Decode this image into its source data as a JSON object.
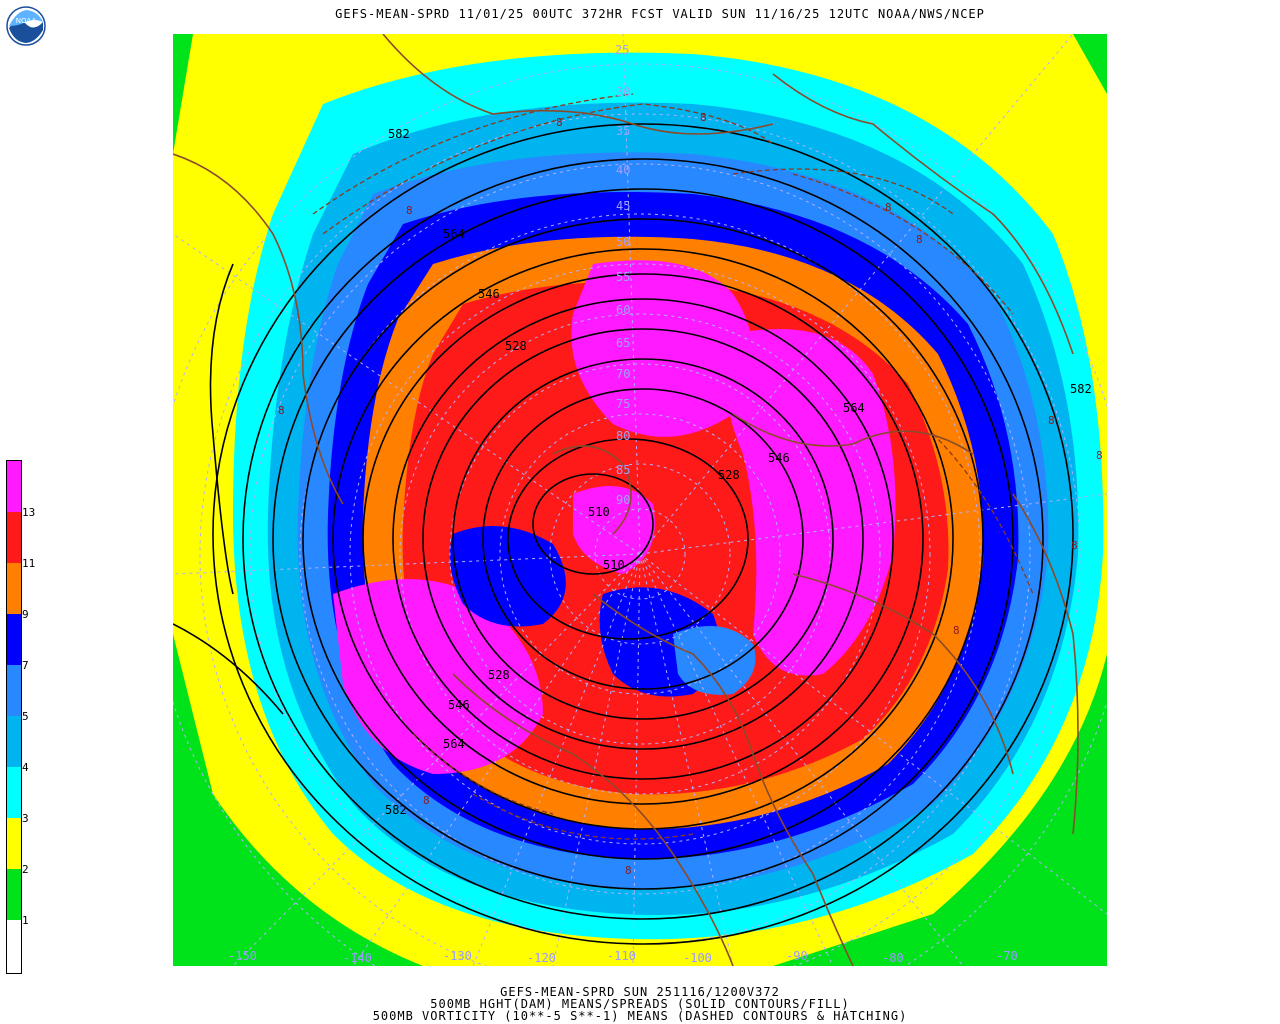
{
  "header": {
    "title": "GEFS-MEAN-SPRD 11/01/25 00UTC 372HR FCST VALID SUN 11/16/25 12UTC NOAA/NWS/NCEP",
    "logo_text": "NOAA"
  },
  "legend": {
    "colors": [
      "#ffffff",
      "#00e21a",
      "#ffff00",
      "#00ffff",
      "#00b4f0",
      "#2888ff",
      "#0000ff",
      "#ff8000",
      "#ff1a1a",
      "#ff1aff"
    ],
    "labels": [
      "1",
      "2",
      "3",
      "4",
      "5",
      "7",
      "9",
      "11",
      "13"
    ]
  },
  "map": {
    "longitude_labels": [
      "-150",
      "-140",
      "-130",
      "-120",
      "-110",
      "-100",
      "-90",
      "-80",
      "-70"
    ],
    "latitude_labels": [
      "25",
      "30",
      "35",
      "40",
      "45",
      "50",
      "55",
      "60",
      "65",
      "70",
      "75",
      "80",
      "85",
      "90"
    ],
    "height_contour_labels": [
      "582",
      "564",
      "546",
      "528",
      "510",
      "510",
      "528",
      "546",
      "564",
      "582",
      "546",
      "564",
      "582",
      "528",
      "546",
      "564",
      "582"
    ],
    "vorticity_label": "8"
  },
  "footer": {
    "line1": "GEFS-MEAN-SPRD SUN 251116/1200V372",
    "line2": "500MB HGHT(DAM) MEANS/SPREADS (SOLID CONTOURS/FILL)",
    "line3": "500MB VORTICITY (10**-5 S**-1) MEANS (DASHED CONTOURS & HATCHING)"
  }
}
